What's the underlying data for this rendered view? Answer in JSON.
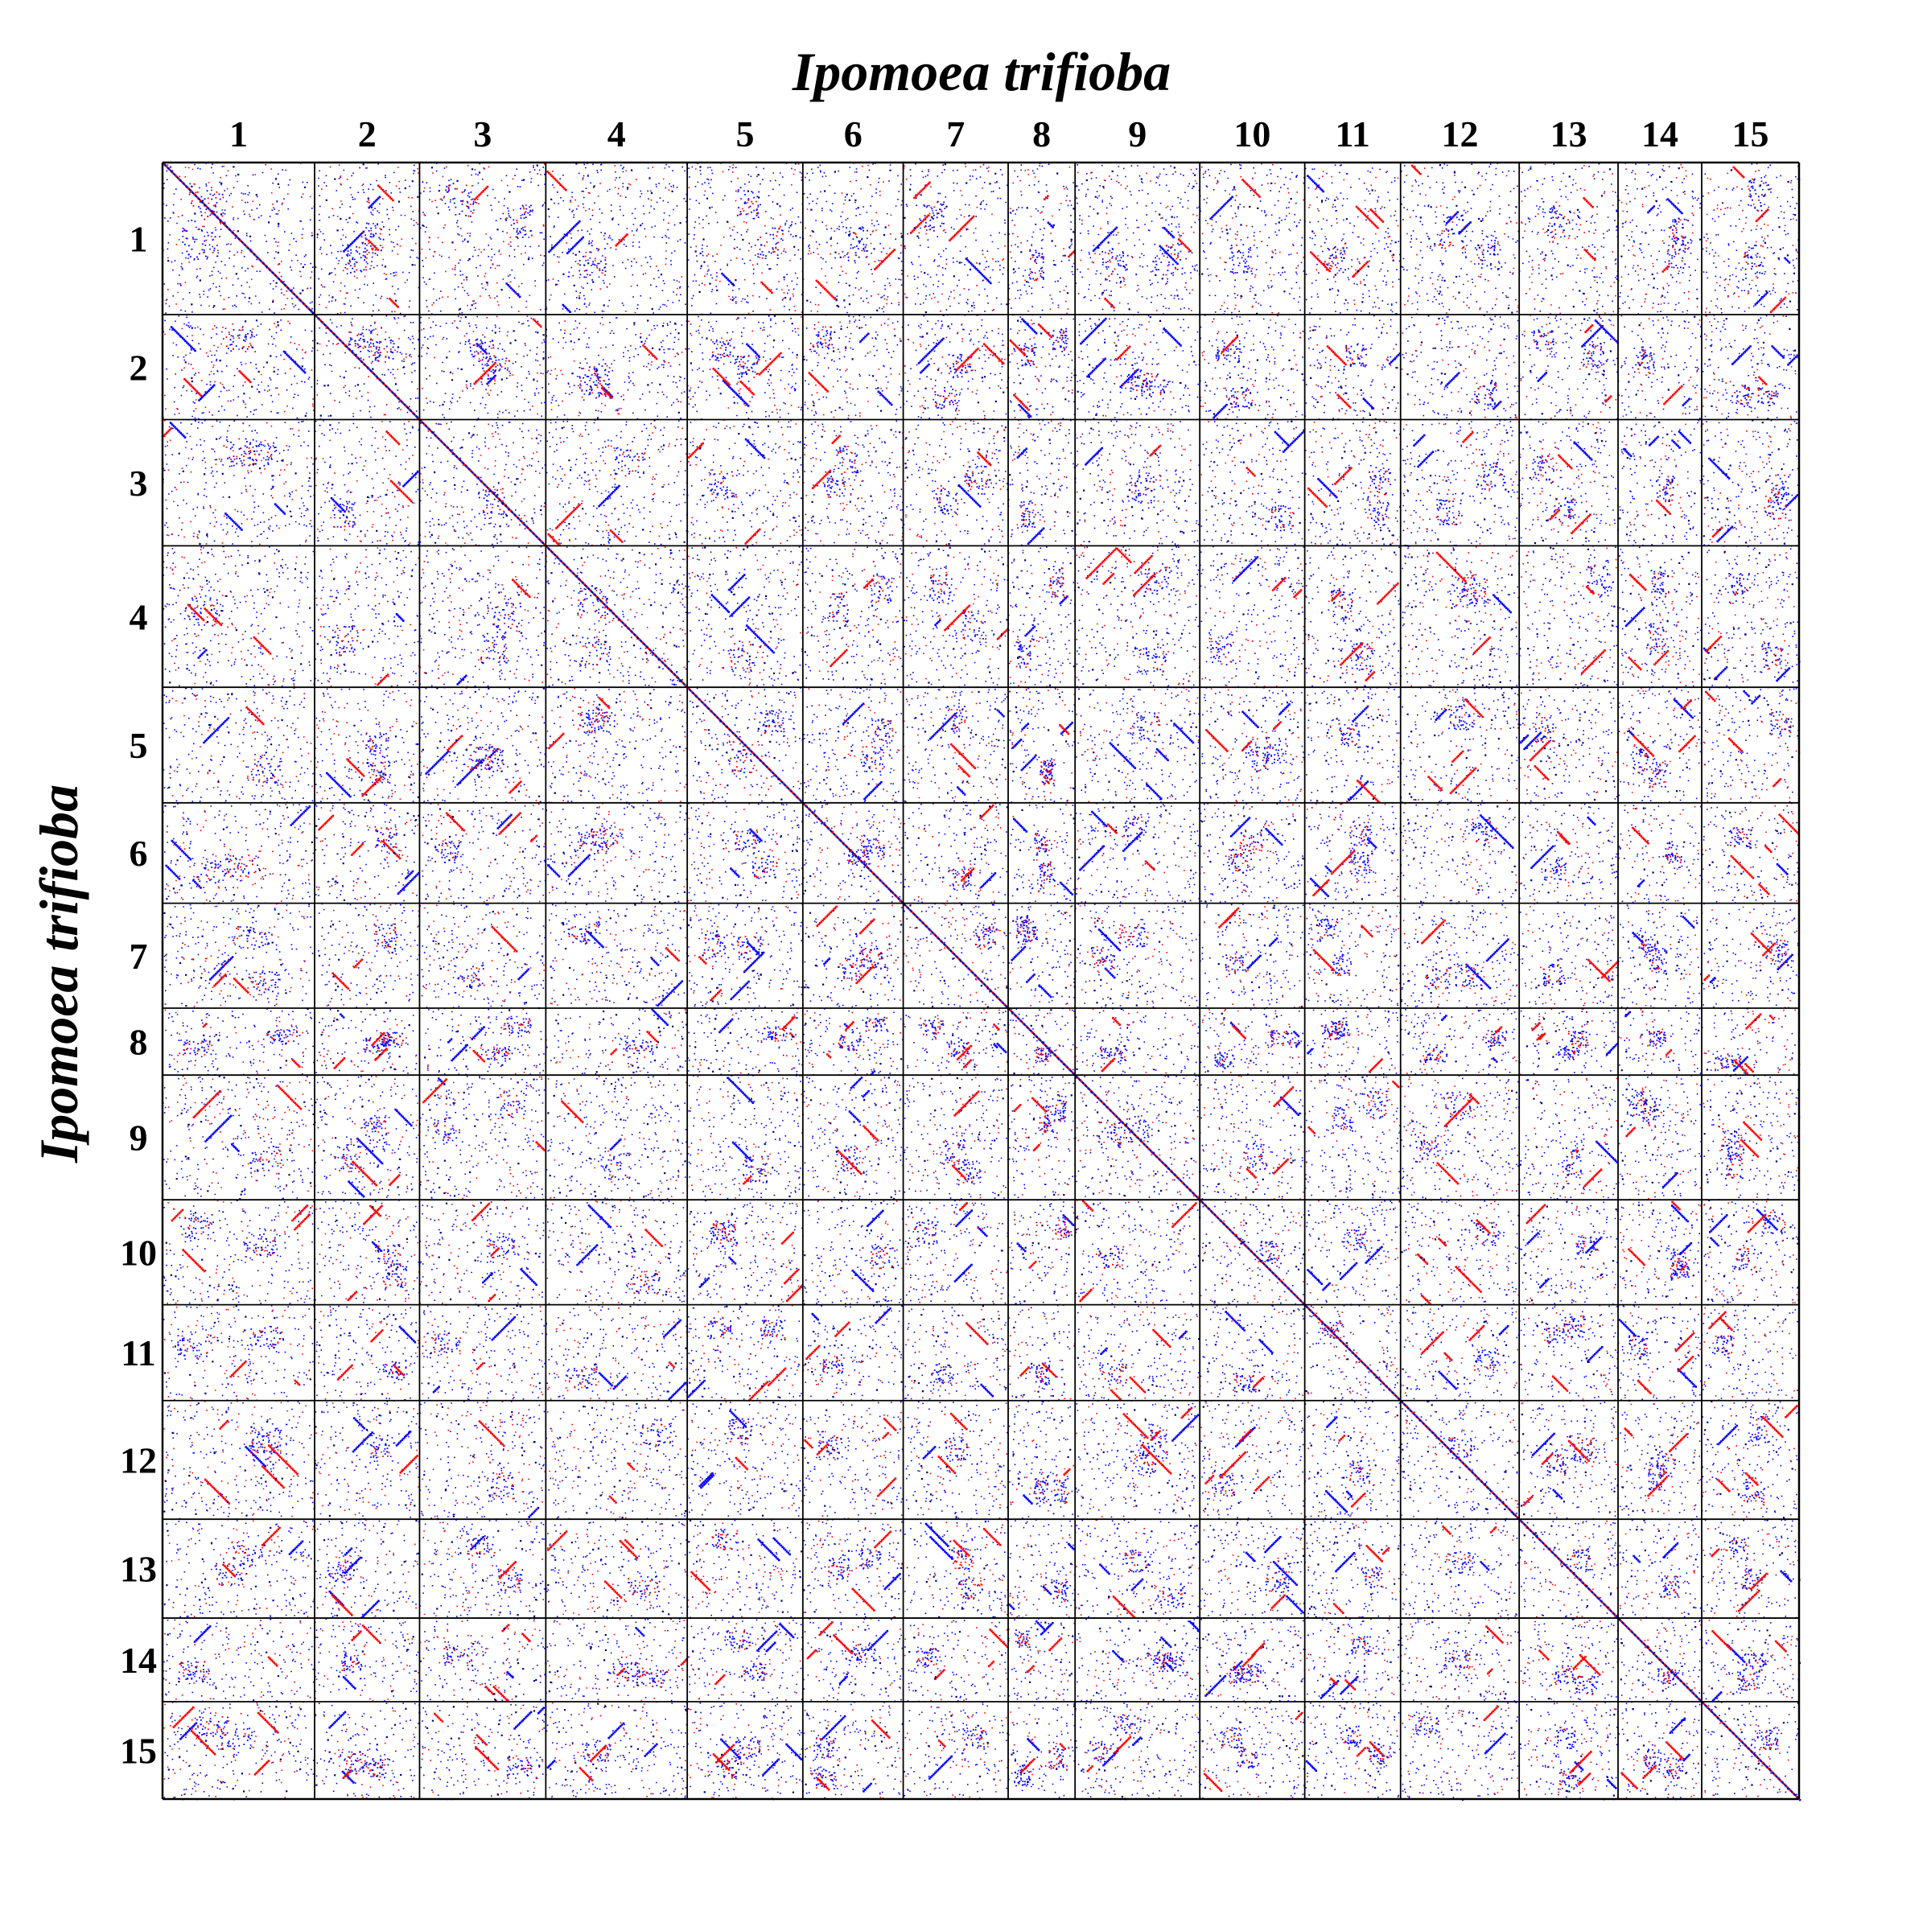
{
  "chart_data": {
    "type": "scatter",
    "title": "",
    "xlabel": "Ipomoea trifioba",
    "ylabel": "Ipomoea trifioba",
    "x_chromosomes": [
      "1",
      "2",
      "3",
      "4",
      "5",
      "6",
      "7",
      "8",
      "9",
      "10",
      "11",
      "12",
      "13",
      "14",
      "15"
    ],
    "y_chromosomes": [
      "1",
      "2",
      "3",
      "4",
      "5",
      "6",
      "7",
      "8",
      "9",
      "10",
      "11",
      "12",
      "13",
      "14",
      "15"
    ],
    "relative_lengths": [
      1.0,
      0.69,
      0.83,
      0.93,
      0.76,
      0.66,
      0.69,
      0.44,
      0.82,
      0.69,
      0.63,
      0.78,
      0.65,
      0.55,
      0.64
    ],
    "grid": true,
    "legend": "none",
    "series": [
      {
        "color": "#0000ff"
      },
      {
        "color": "#ff0000"
      }
    ],
    "axis_color": "#000000",
    "colors": {
      "blue": "#0000ff",
      "red": "#ff0000",
      "navy": "#000080"
    }
  }
}
